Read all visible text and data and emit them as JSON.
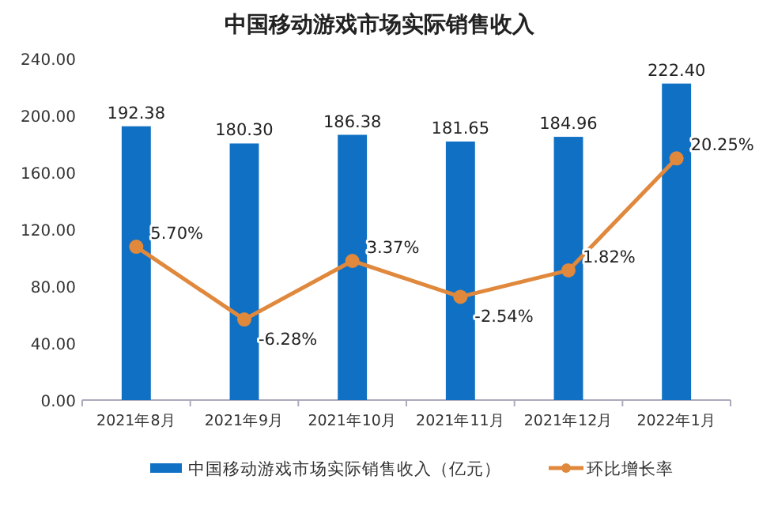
{
  "chart_data": {
    "type": "bar",
    "title": "中国移动游戏市场实际销售收入",
    "categories": [
      "2021年8月",
      "2021年9月",
      "2021年10月",
      "2021年11月",
      "2021年12月",
      "2022年1月"
    ],
    "series": [
      {
        "name": "中国移动游戏市场实际销售收入（亿元）",
        "type": "bar",
        "color": "#1070c4",
        "values": [
          192.38,
          180.3,
          186.38,
          181.65,
          184.96,
          222.4
        ],
        "value_labels": [
          "192.38",
          "180.30",
          "186.38",
          "181.65",
          "184.96",
          "222.40"
        ]
      },
      {
        "name": "环比增长率",
        "type": "line",
        "axis": "y2",
        "color": "#e0883c",
        "marker": "circle",
        "values": [
          5.7,
          -6.28,
          3.37,
          -2.54,
          1.82,
          20.25
        ],
        "value_labels": [
          "5.70%",
          "-6.28%",
          "3.37%",
          "-2.54%",
          "1.82%",
          "20.25%"
        ]
      }
    ],
    "ylim": [
      0,
      240
    ],
    "yticks": [
      {
        "value": 0,
        "label": "0.00"
      },
      {
        "value": 40,
        "label": "40.00"
      },
      {
        "value": 80,
        "label": "80.00"
      },
      {
        "value": 120,
        "label": "120.00"
      },
      {
        "value": 160,
        "label": "160.00"
      },
      {
        "value": 200,
        "label": "200.00"
      },
      {
        "value": 240,
        "label": "240.00"
      }
    ],
    "grid": false,
    "legend": "bottom"
  }
}
